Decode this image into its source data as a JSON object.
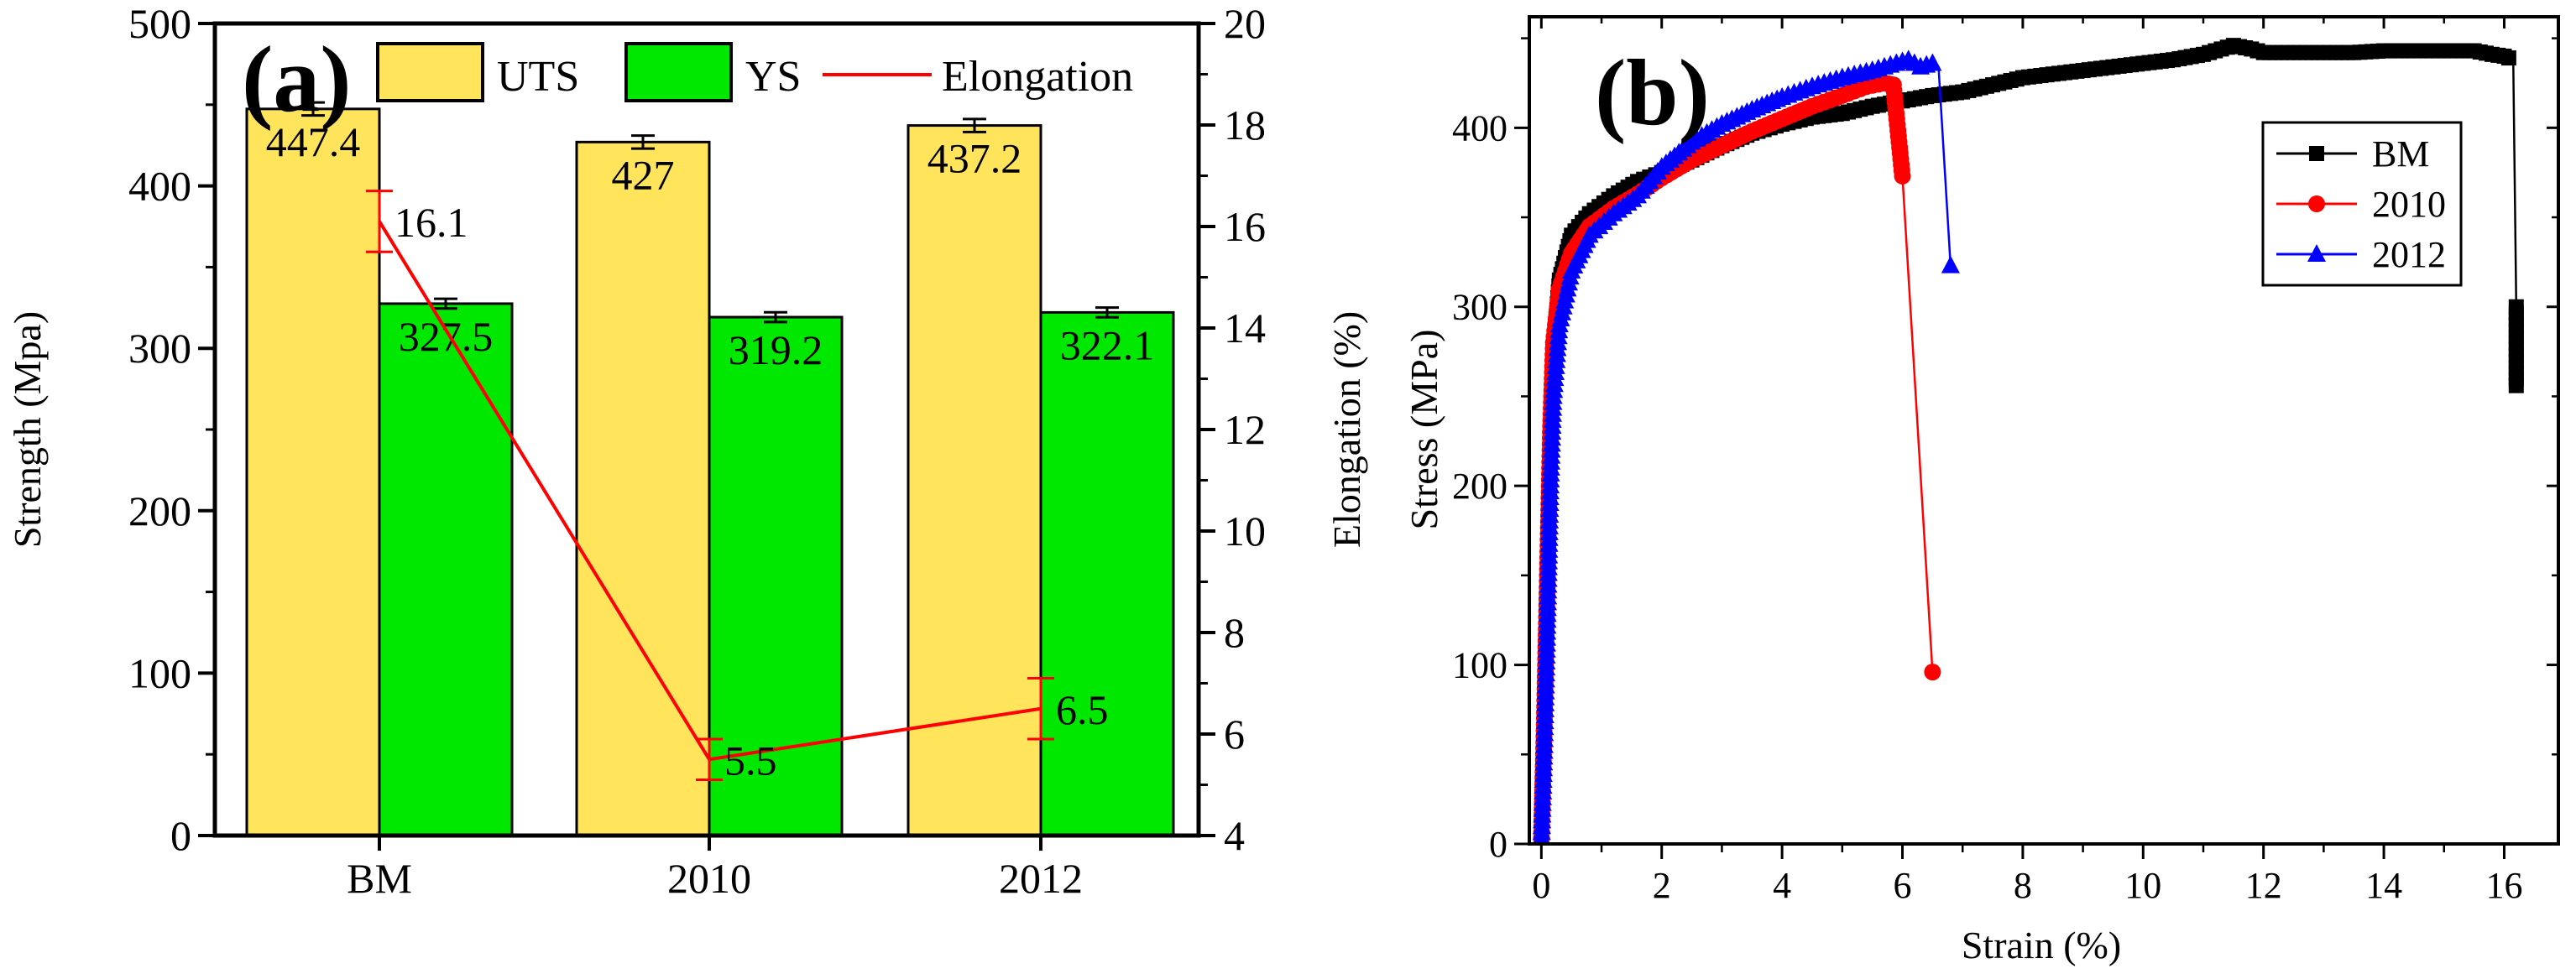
{
  "colors": {
    "uts": "#ffe45c",
    "ys": "#00e800",
    "elongation": "#ff0000",
    "bm": "#000000",
    "s2010": "#ff0000",
    "s2012": "#0000ff"
  },
  "chart_data": [
    {
      "panel": "(a)",
      "type": "bar",
      "categories": [
        "BM",
        "2010",
        "2012"
      ],
      "series": [
        {
          "name": "UTS",
          "values": [
            447.4,
            427,
            437.2
          ],
          "errors": [
            4,
            4,
            4
          ],
          "labels": [
            "447.4",
            "427",
            "437.2"
          ]
        },
        {
          "name": "YS",
          "values": [
            327.5,
            319.2,
            322.1
          ],
          "errors": [
            3,
            3,
            3
          ],
          "labels": [
            "327.5",
            "319.2",
            "322.1"
          ]
        }
      ],
      "line_series": {
        "name": "Elongation",
        "values": [
          16.1,
          5.5,
          6.5
        ],
        "errors": [
          0.6,
          0.4,
          0.6
        ],
        "labels": [
          "16.1",
          "5.5",
          "6.5"
        ],
        "axis": "right"
      },
      "ylabel": "Strength (Mpa)",
      "ylim": [
        0,
        500
      ],
      "yticks": [
        "0",
        "100",
        "200",
        "300",
        "400",
        "500"
      ],
      "y2label": "Elongation (%)",
      "y2lim": [
        4,
        20
      ],
      "y2ticks": [
        "4",
        "6",
        "8",
        "10",
        "12",
        "14",
        "16",
        "18",
        "20"
      ],
      "legend_position": "top"
    },
    {
      "panel": "(b)",
      "type": "line",
      "xlabel": "Strain (%)",
      "ylabel": "Stress (MPa)",
      "xlim": [
        -0.2,
        16.9
      ],
      "ylim": [
        0,
        462
      ],
      "xticks": [
        "0",
        "2",
        "4",
        "6",
        "8",
        "10",
        "12",
        "14",
        "16"
      ],
      "yticks": [
        "0",
        "100",
        "200",
        "300",
        "400"
      ],
      "legend_position": "top-right",
      "series": [
        {
          "name": "BM",
          "marker": "square",
          "x": [
            0,
            0.05,
            0.1,
            0.15,
            0.2,
            0.3,
            0.5,
            0.8,
            1.2,
            1.6,
            2,
            2.5,
            3,
            3.5,
            4,
            4.5,
            5,
            5.5,
            6,
            6.5,
            7,
            7.5,
            8,
            8.5,
            9,
            9.5,
            10,
            10.5,
            11,
            11.3,
            11.5,
            11.8,
            12,
            12.5,
            13,
            13.5,
            14,
            14.5,
            15,
            15.5,
            15.8,
            16,
            16.15,
            16.2,
            16.2
          ],
          "y": [
            0,
            60,
            140,
            220,
            275,
            315,
            340,
            352,
            362,
            370,
            375,
            382,
            390,
            397,
            402,
            406,
            408,
            412,
            415,
            418,
            420,
            424,
            428,
            430,
            432,
            434,
            436,
            438,
            441,
            444,
            446,
            444,
            442,
            442,
            442,
            442,
            443,
            443,
            443,
            443,
            441,
            440,
            438,
            300,
            256
          ]
        },
        {
          "name": "2010",
          "marker": "circle",
          "x": [
            0,
            0.05,
            0.1,
            0.15,
            0.2,
            0.3,
            0.5,
            0.8,
            1.2,
            1.6,
            2,
            2.5,
            3,
            3.5,
            4,
            4.5,
            5,
            5.4,
            5.7,
            5.85,
            6.0,
            6.5
          ],
          "y": [
            0,
            70,
            150,
            230,
            280,
            310,
            330,
            345,
            355,
            363,
            372,
            382,
            390,
            398,
            405,
            412,
            418,
            423,
            425,
            424,
            373,
            96
          ]
        },
        {
          "name": "2012",
          "marker": "triangle",
          "x": [
            0,
            0.05,
            0.1,
            0.15,
            0.2,
            0.3,
            0.5,
            0.8,
            1.2,
            1.6,
            2,
            2.5,
            3,
            3.5,
            4,
            4.5,
            5,
            5.5,
            5.9,
            6.1,
            6.3,
            6.5,
            6.6,
            6.8
          ],
          "y": [
            0,
            55,
            125,
            200,
            250,
            290,
            320,
            340,
            352,
            362,
            378,
            392,
            402,
            410,
            417,
            423,
            428,
            432,
            436,
            438,
            434,
            436,
            434,
            323
          ]
        }
      ]
    }
  ]
}
